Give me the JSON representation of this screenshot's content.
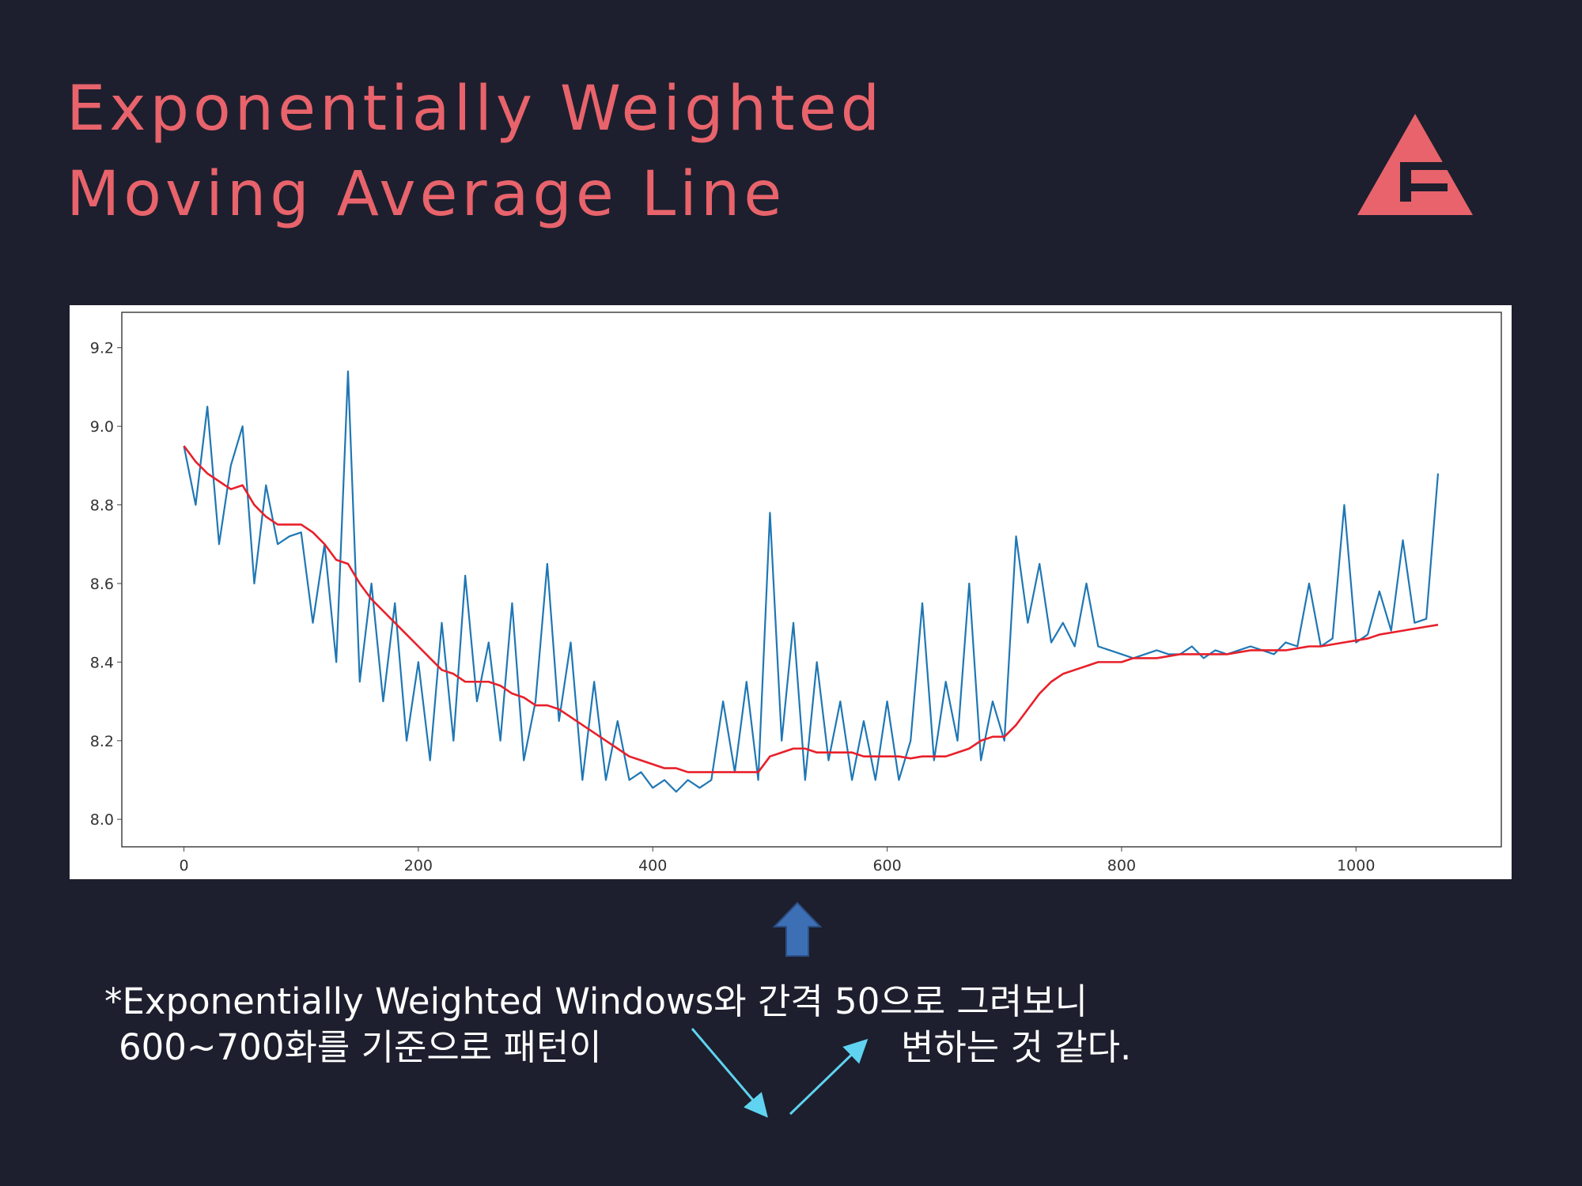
{
  "slide": {
    "title_lines": [
      "Exponentially Weighted",
      "Moving Average Line"
    ],
    "caption_lines": [
      "*Exponentially Weighted Windows와 간격 50으로 그려보니",
      "600~700화를 기준으로 패턴이",
      "변하는 것 같다."
    ]
  },
  "chart_data": {
    "type": "line",
    "x": [
      0,
      10,
      20,
      30,
      40,
      50,
      60,
      70,
      80,
      90,
      100,
      110,
      120,
      130,
      140,
      150,
      160,
      170,
      180,
      190,
      200,
      210,
      220,
      230,
      240,
      250,
      260,
      270,
      280,
      290,
      300,
      310,
      320,
      330,
      340,
      350,
      360,
      370,
      380,
      390,
      400,
      410,
      420,
      430,
      440,
      450,
      460,
      470,
      480,
      490,
      500,
      510,
      520,
      530,
      540,
      550,
      560,
      570,
      580,
      590,
      600,
      610,
      620,
      630,
      640,
      650,
      660,
      670,
      680,
      690,
      700,
      710,
      720,
      730,
      740,
      750,
      760,
      770,
      780,
      790,
      800,
      810,
      820,
      830,
      840,
      850,
      860,
      870,
      880,
      890,
      900,
      910,
      920,
      930,
      940,
      950,
      960,
      970,
      980,
      990,
      1000,
      1010,
      1020,
      1030,
      1040,
      1050,
      1060,
      1070
    ],
    "series": [
      {
        "color": "#1f77b4",
        "values": [
          8.95,
          8.8,
          9.05,
          8.7,
          8.9,
          9.0,
          8.6,
          8.85,
          8.7,
          8.72,
          8.73,
          8.5,
          8.7,
          8.4,
          9.14,
          8.35,
          8.6,
          8.3,
          8.55,
          8.2,
          8.4,
          8.15,
          8.5,
          8.2,
          8.62,
          8.3,
          8.45,
          8.2,
          8.55,
          8.15,
          8.3,
          8.65,
          8.25,
          8.45,
          8.1,
          8.35,
          8.1,
          8.25,
          8.1,
          8.12,
          8.08,
          8.1,
          8.07,
          8.1,
          8.08,
          8.1,
          8.3,
          8.12,
          8.35,
          8.1,
          8.78,
          8.2,
          8.5,
          8.1,
          8.4,
          8.15,
          8.3,
          8.1,
          8.25,
          8.1,
          8.3,
          8.1,
          8.2,
          8.55,
          8.15,
          8.35,
          8.2,
          8.6,
          8.15,
          8.3,
          8.2,
          8.72,
          8.5,
          8.65,
          8.45,
          8.5,
          8.44,
          8.6,
          8.44,
          8.43,
          8.42,
          8.41,
          8.42,
          8.43,
          8.42,
          8.42,
          8.44,
          8.41,
          8.43,
          8.42,
          8.43,
          8.44,
          8.43,
          8.42,
          8.45,
          8.44,
          8.6,
          8.44,
          8.46,
          8.8,
          8.45,
          8.47,
          8.58,
          8.48,
          8.71,
          8.5,
          8.51,
          8.88
        ]
      },
      {
        "color": "#e8202a",
        "values": [
          8.95,
          8.91,
          8.88,
          8.86,
          8.84,
          8.85,
          8.8,
          8.77,
          8.75,
          8.75,
          8.75,
          8.73,
          8.7,
          8.66,
          8.65,
          8.6,
          8.56,
          8.53,
          8.5,
          8.47,
          8.44,
          8.41,
          8.38,
          8.37,
          8.35,
          8.35,
          8.35,
          8.34,
          8.32,
          8.31,
          8.29,
          8.29,
          8.28,
          8.26,
          8.24,
          8.22,
          8.2,
          8.18,
          8.16,
          8.15,
          8.14,
          8.13,
          8.13,
          8.12,
          8.12,
          8.12,
          8.12,
          8.12,
          8.12,
          8.12,
          8.16,
          8.17,
          8.18,
          8.18,
          8.17,
          8.17,
          8.17,
          8.17,
          8.16,
          8.16,
          8.16,
          8.16,
          8.155,
          8.16,
          8.16,
          8.16,
          8.17,
          8.18,
          8.2,
          8.21,
          8.21,
          8.24,
          8.28,
          8.32,
          8.35,
          8.37,
          8.38,
          8.39,
          8.4,
          8.4,
          8.4,
          8.41,
          8.41,
          8.41,
          8.415,
          8.42,
          8.42,
          8.42,
          8.42,
          8.42,
          8.425,
          8.43,
          8.43,
          8.43,
          8.43,
          8.435,
          8.44,
          8.44,
          8.445,
          8.45,
          8.455,
          8.46,
          8.47,
          8.475,
          8.48,
          8.485,
          8.49,
          8.495
        ]
      }
    ],
    "xlim": [
      -53,
      1124
    ],
    "ylim": [
      7.93,
      9.29
    ],
    "xticks": [
      0,
      200,
      400,
      600,
      800,
      1000
    ],
    "yticks": [
      {
        "value": 8,
        "label": "8.0"
      },
      8.2,
      8.4,
      8.6,
      8.8,
      {
        "value": 9,
        "label": "9.0"
      },
      9.2
    ],
    "grid": false
  }
}
